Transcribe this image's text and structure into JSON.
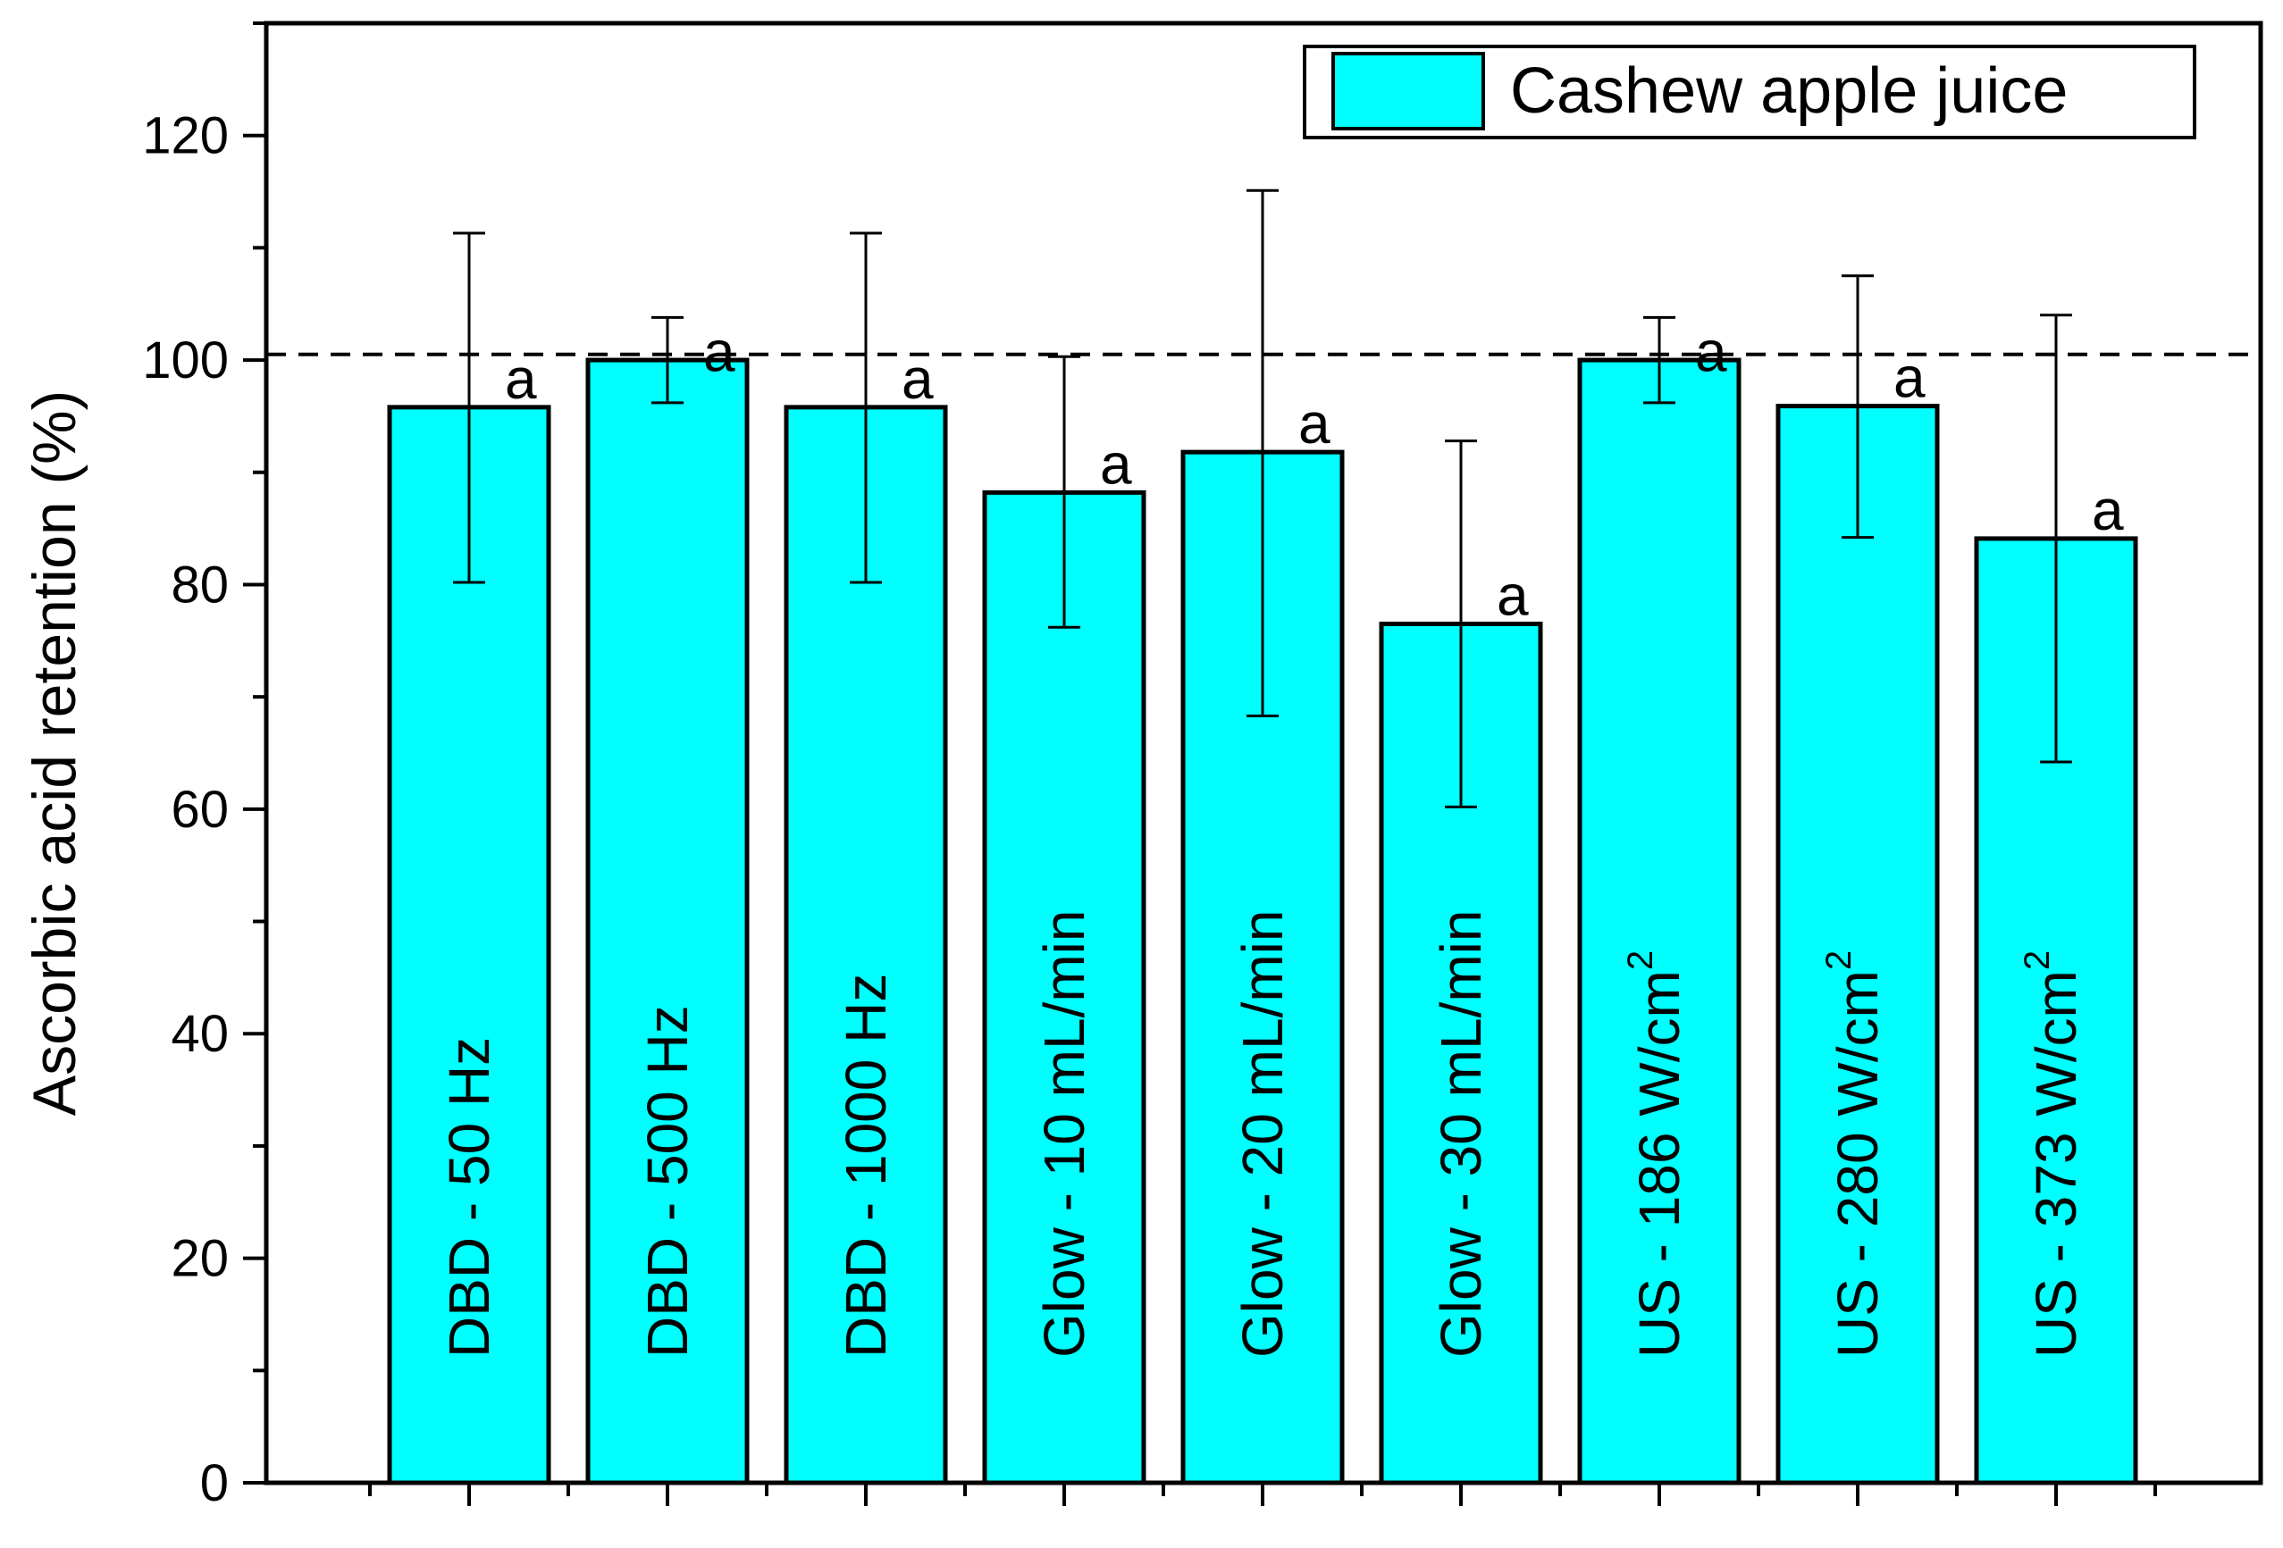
{
  "chart_data": {
    "type": "bar",
    "ylabel": "Ascorbic acid retention (%)",
    "xlabel": "",
    "ylim": [
      0,
      130
    ],
    "yticks": [
      0,
      20,
      40,
      60,
      80,
      100,
      120
    ],
    "reference_line": {
      "y": 100.5,
      "style": "dashed"
    },
    "legend": {
      "label": "Cashew apple juice",
      "placement": "top-right"
    },
    "bar_color": "#00FFFF",
    "categories": [
      {
        "label": "DBD - 50 Hz",
        "sup": ""
      },
      {
        "label": "DBD - 500 Hz",
        "sup": ""
      },
      {
        "label": "DBD - 1000 Hz",
        "sup": ""
      },
      {
        "label": "Glow - 10 mL/min",
        "sup": ""
      },
      {
        "label": "Glow - 20 mL/min",
        "sup": ""
      },
      {
        "label": "Glow - 30 mL/min",
        "sup": ""
      },
      {
        "label": "US - 186 W/cm",
        "sup": "2"
      },
      {
        "label": "US - 280 W/cm",
        "sup": "2"
      },
      {
        "label": "US - 373 W/cm",
        "sup": "2"
      }
    ],
    "values": [
      95.8,
      100.0,
      95.8,
      88.2,
      91.8,
      76.5,
      100.0,
      95.9,
      84.1
    ],
    "error_bars": [
      [
        80.2,
        111.3
      ],
      [
        96.2,
        103.8
      ],
      [
        80.2,
        111.3
      ],
      [
        76.2,
        100.3
      ],
      [
        68.3,
        115.1
      ],
      [
        60.2,
        92.8
      ],
      [
        96.2,
        103.8
      ],
      [
        84.2,
        107.5
      ],
      [
        64.2,
        104.0
      ]
    ],
    "significance": [
      "a",
      "a",
      "a",
      "a",
      "a",
      "a",
      "a",
      "a",
      "a"
    ]
  }
}
